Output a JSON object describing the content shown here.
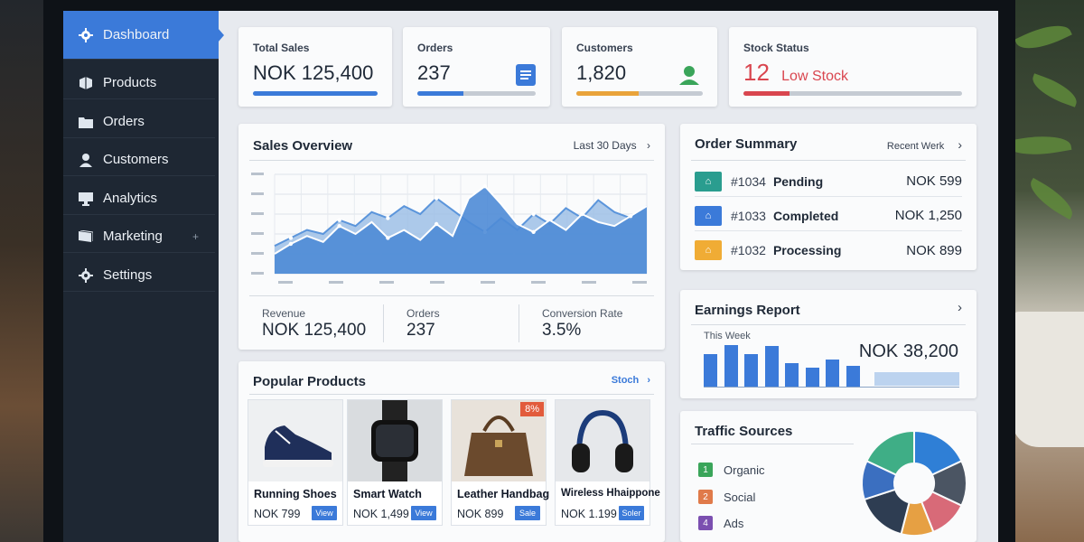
{
  "sidebar": {
    "items": [
      {
        "label": "Dashboard",
        "icon": "gear-cog-icon",
        "active": true
      },
      {
        "label": "Products",
        "icon": "box-icon"
      },
      {
        "label": "Orders",
        "icon": "folder-icon"
      },
      {
        "label": "Customers",
        "icon": "user-icon"
      },
      {
        "label": "Analytics",
        "icon": "monitor-chart-icon"
      },
      {
        "label": "Marketing",
        "icon": "folder-stack-icon",
        "extra": "+"
      },
      {
        "label": "Settings",
        "icon": "gear-icon"
      }
    ]
  },
  "kpis": [
    {
      "label": "Total Sales",
      "value": "NOK 125,400",
      "bar_color": "#3b7ad9",
      "progress": 1.0
    },
    {
      "label": "Orders",
      "value": "237",
      "bar_color": "#3b7ad9",
      "progress": 0.39,
      "icon": "document-icon"
    },
    {
      "label": "Customers",
      "value": "1,820",
      "bar_color": "#e9a33a",
      "progress": 0.49,
      "icon": "user-icon"
    },
    {
      "label": "Stock Status",
      "value": "12",
      "value_suffix": "Low Stock",
      "value_color": "#d9464f",
      "bar_color": "#d9464f",
      "progress": 0.21
    }
  ],
  "sales_overview": {
    "title": "Sales Overview",
    "range": "Last 30 Days",
    "stats": [
      {
        "label": "Revenue",
        "value": "NOK 125,400"
      },
      {
        "label": "Orders",
        "value": "237"
      },
      {
        "label": "Conversion Rate",
        "value": "3.5%"
      }
    ]
  },
  "chart_data": {
    "type": "area",
    "title": "",
    "series": [
      {
        "values": [
          14,
          18,
          22,
          20,
          27,
          24,
          31,
          28,
          34,
          30,
          38,
          32,
          26,
          21,
          28,
          22,
          30,
          25,
          33,
          28,
          37,
          31,
          28,
          34
        ]
      },
      {
        "values": [
          10,
          15,
          19,
          16,
          24,
          20,
          26,
          18,
          22,
          17,
          25,
          19,
          38,
          44,
          35,
          25,
          21,
          27,
          22,
          30,
          26,
          24,
          29,
          34
        ]
      }
    ],
    "grid": true
  },
  "order_summary": {
    "title": "Order Summary",
    "range": "Recent Werk",
    "rows": [
      {
        "id": "#1034",
        "status": "Pending",
        "amount": "NOK 599",
        "color": "#2a9d8f"
      },
      {
        "id": "#1033",
        "status": "Completed",
        "amount": "NOK 1,250",
        "color": "#3b7ad9"
      },
      {
        "id": "#1032",
        "status": "Processing",
        "amount": "NOK 899",
        "color": "#f0ac35"
      }
    ]
  },
  "earnings": {
    "title": "Earnings Report",
    "period": "This Week",
    "value": "NOK 38,200",
    "bars": [
      0.75,
      0.95,
      0.75,
      0.92,
      0.55,
      0.45,
      0.62,
      0.48
    ]
  },
  "popular_products": {
    "title": "Popular Products",
    "link": "Stoch",
    "items": [
      {
        "name": "Running Shoes",
        "price": "NOK 799",
        "button": "View"
      },
      {
        "name": "Smart Watch",
        "price": "NOK 1,499",
        "button": "View"
      },
      {
        "name": "Leather Handbag",
        "price": "NOK 899",
        "button": "Sale",
        "badge": "8%"
      },
      {
        "name": "Wireless Hhaippone",
        "price": "NOK 1.199",
        "button": "Soler"
      }
    ]
  },
  "traffic": {
    "title": "Traffic Sources",
    "sources": [
      {
        "label": "Organic",
        "num": "1",
        "color": "#3aa55a"
      },
      {
        "label": "Social",
        "num": "2",
        "color": "#e07a4a"
      },
      {
        "label": "Ads",
        "num": "4",
        "color": "#7b4fb0"
      }
    ],
    "slices": [
      {
        "value": 18,
        "color": "#2f7fd6"
      },
      {
        "value": 14,
        "color": "#4b5563"
      },
      {
        "value": 12,
        "color": "#d86a78"
      },
      {
        "value": 10,
        "color": "#e6a043"
      },
      {
        "value": 16,
        "color": "#2e3d52"
      },
      {
        "value": 12,
        "color": "#3b6fc0"
      },
      {
        "value": 18,
        "color": "#3fae86"
      }
    ]
  }
}
